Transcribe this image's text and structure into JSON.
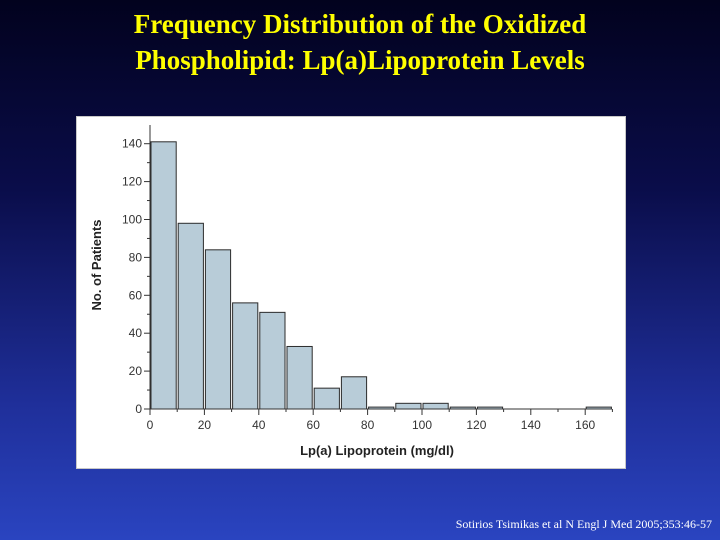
{
  "slide": {
    "title_line1": "Frequency Distribution of the Oxidized",
    "title_line2": "Phospholipid: Lp(a)Lipoprotein Levels",
    "citation": "Sotirios Tsimikas et al N Engl J Med 2005;353:46-57"
  },
  "colors": {
    "bar_fill": "#b8ccd8",
    "bar_stroke": "#2b2b2b",
    "axis": "#333333"
  },
  "chart_data": {
    "type": "bar",
    "title": "",
    "xlabel": "Lp(a) Lipoprotein (mg/dl)",
    "ylabel": "No. of Patients",
    "bin_width": 10,
    "bins_start": [
      0,
      10,
      20,
      30,
      40,
      50,
      60,
      70,
      80,
      90,
      100,
      110,
      120,
      130,
      140,
      150,
      160
    ],
    "values": [
      141,
      98,
      84,
      56,
      51,
      33,
      11,
      17,
      1,
      3,
      3,
      1,
      1,
      0,
      0,
      0,
      1
    ],
    "xlim": [
      0,
      170
    ],
    "ylim": [
      0,
      145
    ],
    "xticks": [
      0,
      20,
      40,
      60,
      80,
      100,
      120,
      140,
      160
    ],
    "yticks": [
      0,
      20,
      40,
      60,
      80,
      100,
      120,
      140
    ],
    "grid": false,
    "legend": "none"
  }
}
